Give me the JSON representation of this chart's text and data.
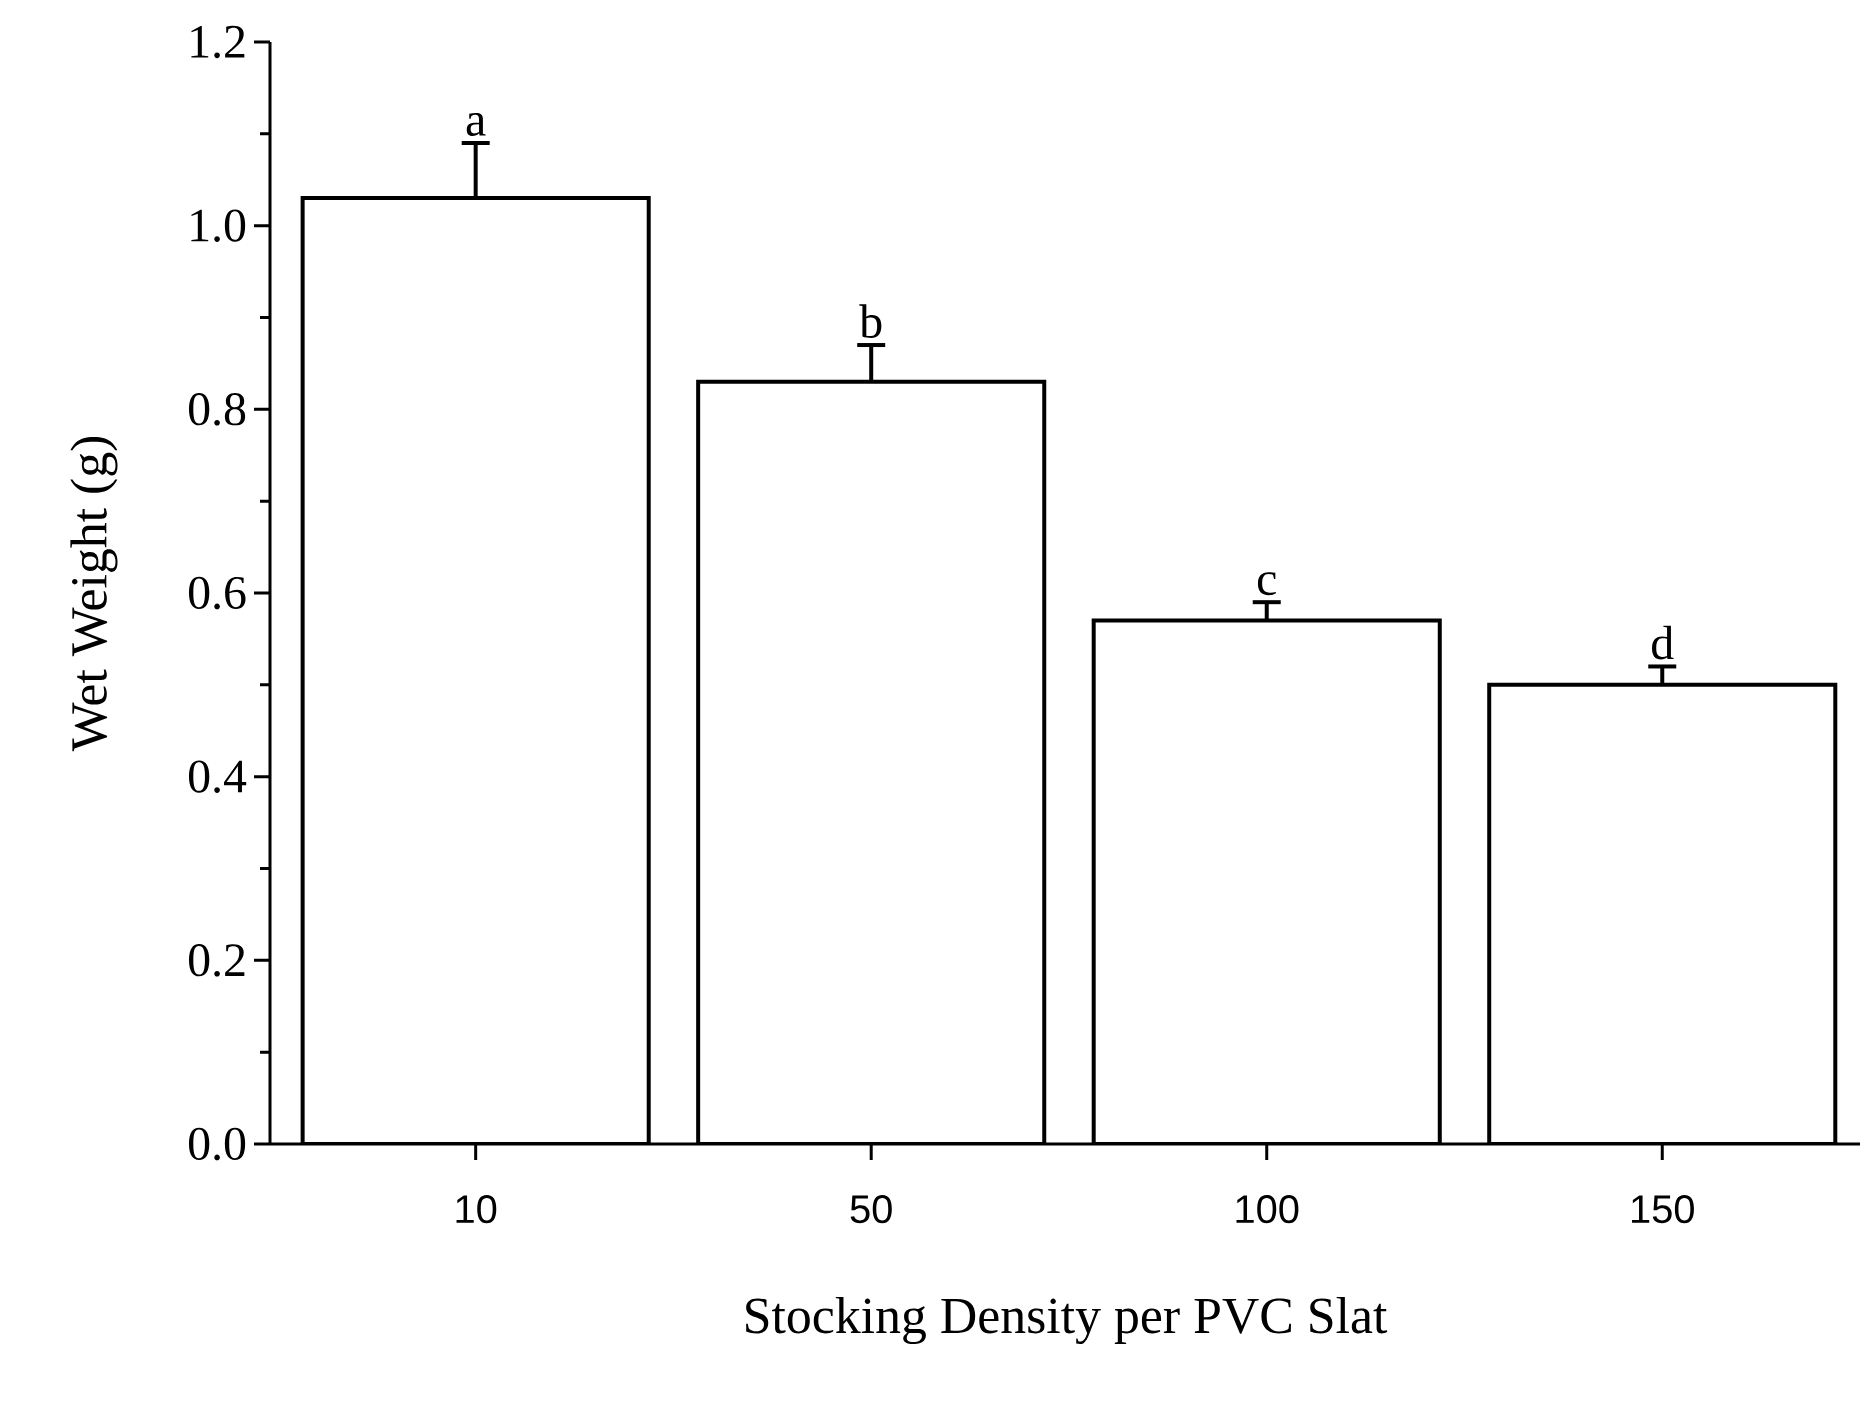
{
  "chart_data": {
    "type": "bar",
    "xlabel": "Stocking Density per PVC Slat",
    "ylabel": "Wet Weight (g)",
    "categories": [
      "10",
      "50",
      "100",
      "150"
    ],
    "values": [
      1.03,
      0.83,
      0.57,
      0.5
    ],
    "errors": [
      0.06,
      0.04,
      0.02,
      0.02
    ],
    "color": "#ffffff",
    "ylim": [
      0,
      1.2
    ],
    "yticks": [
      {
        "value": 0,
        "label": "0.0"
      },
      {
        "value": 0.2,
        "label": "0.2"
      },
      {
        "value": 0.4,
        "label": "0.4"
      },
      {
        "value": 0.6,
        "label": "0.6"
      },
      {
        "value": 0.8,
        "label": "0.8"
      },
      {
        "value": 1.0,
        "label": "1.0"
      },
      {
        "value": 1.2,
        "label": "1.2"
      }
    ],
    "annotations": [
      {
        "text": "a",
        "x": "10",
        "y": 1.09
      },
      {
        "text": "b",
        "x": "50",
        "y": 0.87
      },
      {
        "text": "c",
        "x": "100",
        "y": 0.59
      },
      {
        "text": "d",
        "x": "150",
        "y": 0.52
      }
    ],
    "grid": false
  }
}
